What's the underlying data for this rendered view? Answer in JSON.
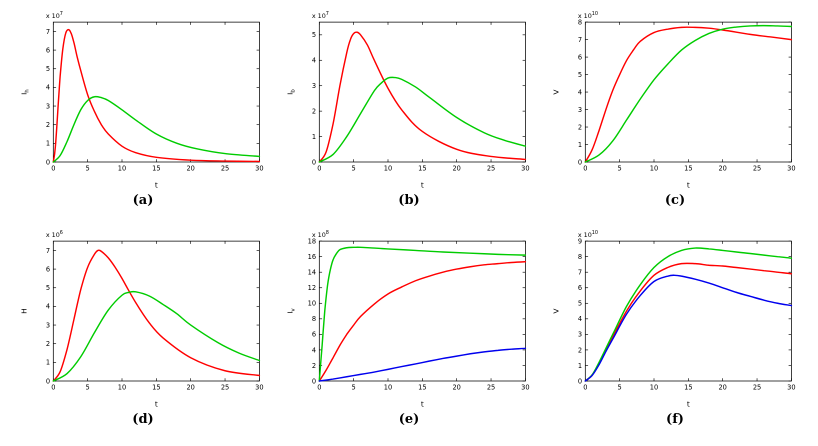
{
  "chart_data": [
    {
      "type": "line",
      "caption": "(a)",
      "xlabel": "t",
      "ylabel": "I",
      "ylabel_sub": "h",
      "scale_prefix": "x 10",
      "scale_exp": "7",
      "xlim": [
        0,
        30
      ],
      "ylim": [
        0,
        7.5
      ],
      "xticks": [
        0,
        5,
        10,
        15,
        20,
        25,
        30
      ],
      "yticks": [
        0,
        1,
        2,
        3,
        4,
        5,
        6,
        7
      ],
      "grid": false,
      "legend": null,
      "series": [
        {
          "name": "red-curve",
          "color": "#ff0000",
          "x": [
            0,
            0.3,
            0.7,
            1,
            1.4,
            1.8,
            2.2,
            2.6,
            3,
            3.5,
            4,
            5,
            6,
            7,
            8,
            10,
            12,
            15,
            20,
            25,
            30
          ],
          "y": [
            0,
            0.8,
            3.0,
            4.6,
            6.1,
            6.9,
            7.1,
            6.9,
            6.4,
            5.6,
            4.9,
            3.6,
            2.7,
            2.0,
            1.5,
            0.85,
            0.5,
            0.25,
            0.1,
            0.05,
            0.03
          ]
        },
        {
          "name": "green-curve",
          "color": "#00cc00",
          "x": [
            0,
            1,
            2,
            3,
            4,
            5,
            6,
            7,
            8,
            10,
            12,
            15,
            18,
            21,
            25,
            30
          ],
          "y": [
            0,
            0.35,
            1.1,
            2.0,
            2.8,
            3.3,
            3.5,
            3.45,
            3.3,
            2.8,
            2.25,
            1.5,
            1.0,
            0.7,
            0.45,
            0.3
          ]
        }
      ]
    },
    {
      "type": "line",
      "caption": "(b)",
      "xlabel": "t",
      "ylabel": "I",
      "ylabel_sub": "b",
      "scale_prefix": "x 10",
      "scale_exp": "7",
      "xlim": [
        0,
        30
      ],
      "ylim": [
        0,
        5.5
      ],
      "xticks": [
        0,
        5,
        10,
        15,
        20,
        25,
        30
      ],
      "yticks": [
        0,
        1,
        2,
        3,
        4,
        5
      ],
      "grid": false,
      "legend": null,
      "series": [
        {
          "name": "red-curve",
          "color": "#ff0000",
          "x": [
            0,
            1,
            2,
            3,
            4,
            4.5,
            5,
            5.5,
            6,
            7,
            8,
            10,
            12,
            15,
            20,
            25,
            30
          ],
          "y": [
            0,
            0.4,
            1.5,
            3.0,
            4.3,
            4.8,
            5.05,
            5.1,
            5.0,
            4.6,
            4.0,
            2.9,
            2.05,
            1.2,
            0.5,
            0.22,
            0.1
          ]
        },
        {
          "name": "green-curve",
          "color": "#00cc00",
          "x": [
            0,
            2,
            4,
            6,
            8,
            9,
            10,
            11,
            12,
            14,
            16,
            20,
            24,
            27,
            30
          ],
          "y": [
            0,
            0.3,
            1.0,
            1.9,
            2.8,
            3.1,
            3.3,
            3.32,
            3.25,
            2.95,
            2.55,
            1.75,
            1.15,
            0.85,
            0.62
          ]
        }
      ]
    },
    {
      "type": "line",
      "caption": "(c)",
      "xlabel": "t",
      "ylabel": "V",
      "ylabel_sub": "",
      "scale_prefix": "x 10",
      "scale_exp": "10",
      "xlim": [
        0,
        30
      ],
      "ylim": [
        0,
        8
      ],
      "xticks": [
        0,
        5,
        10,
        15,
        20,
        25,
        30
      ],
      "yticks": [
        0,
        1,
        2,
        3,
        4,
        5,
        6,
        7,
        8
      ],
      "grid": false,
      "legend": null,
      "series": [
        {
          "name": "red-curve",
          "color": "#ff0000",
          "x": [
            0,
            1,
            2,
            3,
            4,
            5,
            6,
            7,
            8,
            10,
            12,
            14,
            16,
            18,
            20,
            24,
            27,
            30
          ],
          "y": [
            0,
            0.7,
            1.8,
            3.0,
            4.1,
            5.0,
            5.8,
            6.4,
            6.9,
            7.4,
            7.6,
            7.7,
            7.7,
            7.65,
            7.55,
            7.3,
            7.15,
            7.0
          ]
        },
        {
          "name": "green-curve",
          "color": "#00cc00",
          "x": [
            0,
            2,
            4,
            6,
            8,
            10,
            12,
            14,
            16,
            18,
            20,
            22,
            24,
            26,
            28,
            30
          ],
          "y": [
            0,
            0.4,
            1.2,
            2.4,
            3.6,
            4.7,
            5.6,
            6.4,
            6.95,
            7.35,
            7.6,
            7.72,
            7.78,
            7.8,
            7.78,
            7.75
          ]
        }
      ]
    },
    {
      "type": "line",
      "caption": "(d)",
      "xlabel": "t",
      "ylabel": "H",
      "ylabel_sub": "",
      "scale_prefix": "x 10",
      "scale_exp": "6",
      "xlim": [
        0,
        30
      ],
      "ylim": [
        0,
        7.5
      ],
      "xticks": [
        0,
        5,
        10,
        15,
        20,
        25,
        30
      ],
      "yticks": [
        0,
        1,
        2,
        3,
        4,
        5,
        6,
        7
      ],
      "grid": false,
      "legend": null,
      "series": [
        {
          "name": "red-curve",
          "color": "#ff0000",
          "x": [
            0,
            1,
            2,
            3,
            4,
            5,
            6,
            6.5,
            7,
            8,
            9,
            10,
            12,
            14,
            16,
            20,
            25,
            30
          ],
          "y": [
            0,
            0.5,
            1.7,
            3.3,
            4.9,
            6.1,
            6.8,
            7.0,
            6.95,
            6.6,
            6.1,
            5.5,
            4.2,
            3.1,
            2.3,
            1.25,
            0.55,
            0.3
          ]
        },
        {
          "name": "green-curve",
          "color": "#00cc00",
          "x": [
            0,
            2,
            4,
            6,
            8,
            10,
            11,
            12,
            14,
            16,
            18,
            20,
            24,
            27,
            30
          ],
          "y": [
            0,
            0.4,
            1.3,
            2.6,
            3.8,
            4.6,
            4.75,
            4.78,
            4.55,
            4.1,
            3.6,
            3.0,
            2.05,
            1.5,
            1.1
          ]
        }
      ]
    },
    {
      "type": "line",
      "caption": "(e)",
      "xlabel": "t",
      "ylabel": "I",
      "ylabel_sub": "v",
      "scale_prefix": "x 10",
      "scale_exp": "8",
      "xlim": [
        0,
        30
      ],
      "ylim": [
        0,
        18
      ],
      "xticks": [
        0,
        5,
        10,
        15,
        20,
        25,
        30
      ],
      "yticks": [
        0,
        2,
        4,
        6,
        8,
        10,
        12,
        14,
        16,
        18
      ],
      "grid": false,
      "legend": null,
      "series": [
        {
          "name": "red-curve",
          "color": "#ff0000",
          "x": [
            0,
            1,
            2,
            3,
            4,
            5,
            6,
            8,
            10,
            12,
            14,
            16,
            18,
            20,
            22,
            24,
            26,
            28,
            30
          ],
          "y": [
            0,
            1.4,
            3.0,
            4.6,
            6.0,
            7.2,
            8.3,
            9.9,
            11.2,
            12.1,
            12.9,
            13.5,
            14.0,
            14.4,
            14.7,
            14.95,
            15.1,
            15.25,
            15.35
          ]
        },
        {
          "name": "green-curve",
          "color": "#00cc00",
          "x": [
            0,
            0.4,
            0.8,
            1.2,
            1.6,
            2,
            2.5,
            3,
            4,
            5,
            6,
            8,
            10,
            14,
            18,
            22,
            26,
            30
          ],
          "y": [
            0,
            4.5,
            9,
            12.3,
            14.3,
            15.6,
            16.4,
            16.9,
            17.15,
            17.2,
            17.2,
            17.1,
            17.0,
            16.8,
            16.6,
            16.45,
            16.3,
            16.2
          ]
        },
        {
          "name": "blue-curve",
          "color": "#0000ee",
          "x": [
            0,
            2,
            4,
            6,
            8,
            10,
            12,
            14,
            16,
            18,
            20,
            22,
            24,
            26,
            28,
            30
          ],
          "y": [
            0,
            0.25,
            0.55,
            0.85,
            1.15,
            1.5,
            1.85,
            2.2,
            2.55,
            2.9,
            3.2,
            3.5,
            3.75,
            3.95,
            4.1,
            4.2
          ]
        }
      ]
    },
    {
      "type": "line",
      "caption": "(f)",
      "xlabel": "t",
      "ylabel": "V",
      "ylabel_sub": "",
      "scale_prefix": "x 10",
      "scale_exp": "10",
      "xlim": [
        0,
        30
      ],
      "ylim": [
        0,
        9
      ],
      "xticks": [
        0,
        5,
        10,
        15,
        20,
        25,
        30
      ],
      "yticks": [
        0,
        1,
        2,
        3,
        4,
        5,
        6,
        7,
        8,
        9
      ],
      "grid": false,
      "legend": null,
      "series": [
        {
          "name": "red-curve",
          "color": "#ff0000",
          "x": [
            0,
            1,
            2,
            3,
            4,
            6,
            8,
            10,
            12,
            14,
            16,
            18,
            20,
            22,
            24,
            26,
            28,
            30
          ],
          "y": [
            0,
            0.38,
            1.1,
            2.0,
            2.85,
            4.5,
            5.8,
            6.8,
            7.3,
            7.55,
            7.55,
            7.45,
            7.4,
            7.3,
            7.2,
            7.1,
            7.0,
            6.9
          ]
        },
        {
          "name": "green-curve",
          "color": "#00cc00",
          "x": [
            0,
            1,
            2,
            3,
            4,
            6,
            8,
            10,
            12,
            14,
            16,
            18,
            20,
            22,
            24,
            26,
            28,
            30
          ],
          "y": [
            0,
            0.4,
            1.2,
            2.1,
            3.0,
            4.8,
            6.2,
            7.3,
            8.0,
            8.4,
            8.55,
            8.5,
            8.4,
            8.3,
            8.2,
            8.1,
            8.0,
            7.9
          ]
        },
        {
          "name": "blue-curve",
          "color": "#0000ee",
          "x": [
            0,
            1,
            2,
            3,
            4,
            6,
            8,
            10,
            12,
            13,
            14,
            16,
            18,
            20,
            22,
            24,
            26,
            28,
            30
          ],
          "y": [
            0,
            0.36,
            1.05,
            1.9,
            2.7,
            4.3,
            5.5,
            6.4,
            6.75,
            6.8,
            6.75,
            6.55,
            6.3,
            6.0,
            5.7,
            5.45,
            5.2,
            5.0,
            4.85
          ]
        }
      ]
    }
  ]
}
